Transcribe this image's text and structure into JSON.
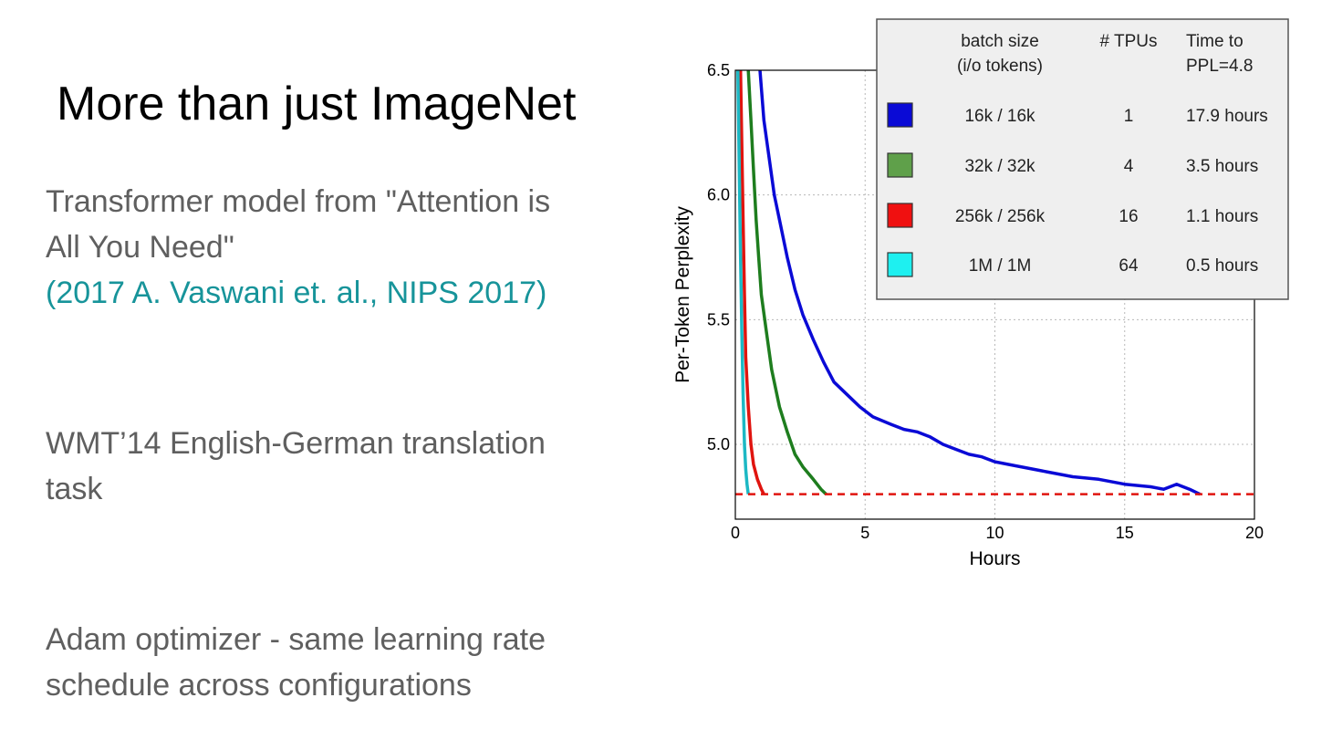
{
  "slide": {
    "title": "More than just ImageNet",
    "bullet1_line1": "Transformer model from \"Attention is",
    "bullet1_line2": "All You Need\"",
    "bullet1_citation": "(2017 A. Vaswani et. al.,  NIPS 2017)",
    "bullet2_line1": "WMT’14 English-German translation",
    "bullet2_line2": "task",
    "bullet3_line1": "Adam optimizer - same learning rate",
    "bullet3_line2": "schedule across configurations"
  },
  "colors": {
    "text_gray": "#5f5f5f",
    "citation_teal": "#17949a",
    "series_blue": "#0a0ad6",
    "series_green": "#1e7d1e",
    "series_red": "#e0140f",
    "series_cyan": "#1cb8c4",
    "legend_bg": "#efefef"
  },
  "chart_data": {
    "type": "line",
    "xlabel": "Hours",
    "ylabel": "Per-Token Perplexity",
    "xlim": [
      0,
      20
    ],
    "ylim": [
      4.7,
      6.5
    ],
    "xticks": [
      "0",
      "5",
      "10",
      "15",
      "20"
    ],
    "yticks": [
      "5.0",
      "5.5",
      "6.0",
      "6.5"
    ],
    "grid": true,
    "reference_line": {
      "y": 4.8,
      "style": "dashed",
      "color": "#e0140f"
    },
    "table": {
      "headers": [
        "batch size\n(i/o tokens)",
        "# TPUs",
        "Time to\nPPL=4.8"
      ],
      "rows": [
        {
          "batch": "16k / 16k",
          "tpus": "1",
          "time": "17.9 hours",
          "color": "#0a0ad6"
        },
        {
          "batch": "32k / 32k",
          "tpus": "4",
          "time": "3.5 hours",
          "color": "#5fa04a"
        },
        {
          "batch": "256k / 256k",
          "tpus": "16",
          "time": "1.1 hours",
          "color": "#f01010"
        },
        {
          "batch": "1M / 1M",
          "tpus": "64",
          "time": "0.5 hours",
          "color": "#1ef0f0"
        }
      ]
    },
    "series": [
      {
        "name": "16k / 16k",
        "color": "#0a0ad6",
        "x": [
          0.95,
          1.1,
          1.3,
          1.5,
          1.7,
          2.0,
          2.3,
          2.6,
          3.0,
          3.4,
          3.8,
          4.3,
          4.8,
          5.3,
          6.0,
          6.5,
          7.0,
          7.5,
          8.0,
          8.5,
          9.0,
          9.5,
          10.0,
          10.5,
          11.0,
          12.0,
          13.0,
          14.0,
          15.0,
          16.0,
          16.5,
          17.0,
          17.5,
          17.9
        ],
        "y": [
          6.5,
          6.3,
          6.15,
          6.0,
          5.9,
          5.75,
          5.62,
          5.52,
          5.42,
          5.33,
          5.25,
          5.2,
          5.15,
          5.11,
          5.08,
          5.06,
          5.05,
          5.03,
          5.0,
          4.98,
          4.96,
          4.95,
          4.93,
          4.92,
          4.91,
          4.89,
          4.87,
          4.86,
          4.84,
          4.83,
          4.82,
          4.84,
          4.82,
          4.8
        ]
      },
      {
        "name": "32k / 32k",
        "color": "#1e7d1e",
        "x": [
          0.5,
          0.6,
          0.7,
          0.8,
          0.9,
          1.0,
          1.2,
          1.4,
          1.7,
          2.0,
          2.3,
          2.6,
          3.0,
          3.3,
          3.5
        ],
        "y": [
          6.5,
          6.3,
          6.1,
          5.9,
          5.75,
          5.6,
          5.45,
          5.3,
          5.15,
          5.05,
          4.96,
          4.91,
          4.86,
          4.82,
          4.8
        ]
      },
      {
        "name": "256k / 256k",
        "color": "#e0140f",
        "x": [
          0.2,
          0.25,
          0.3,
          0.35,
          0.4,
          0.5,
          0.6,
          0.7,
          0.85,
          1.0,
          1.1
        ],
        "y": [
          6.5,
          6.2,
          5.9,
          5.6,
          5.35,
          5.15,
          5.0,
          4.92,
          4.86,
          4.82,
          4.8
        ]
      },
      {
        "name": "1M / 1M",
        "color": "#1cb8c4",
        "x": [
          0.1,
          0.15,
          0.2,
          0.25,
          0.3,
          0.35,
          0.4,
          0.45,
          0.5
        ],
        "y": [
          6.5,
          6.1,
          5.75,
          5.45,
          5.2,
          5.0,
          4.9,
          4.84,
          4.8
        ]
      }
    ]
  }
}
